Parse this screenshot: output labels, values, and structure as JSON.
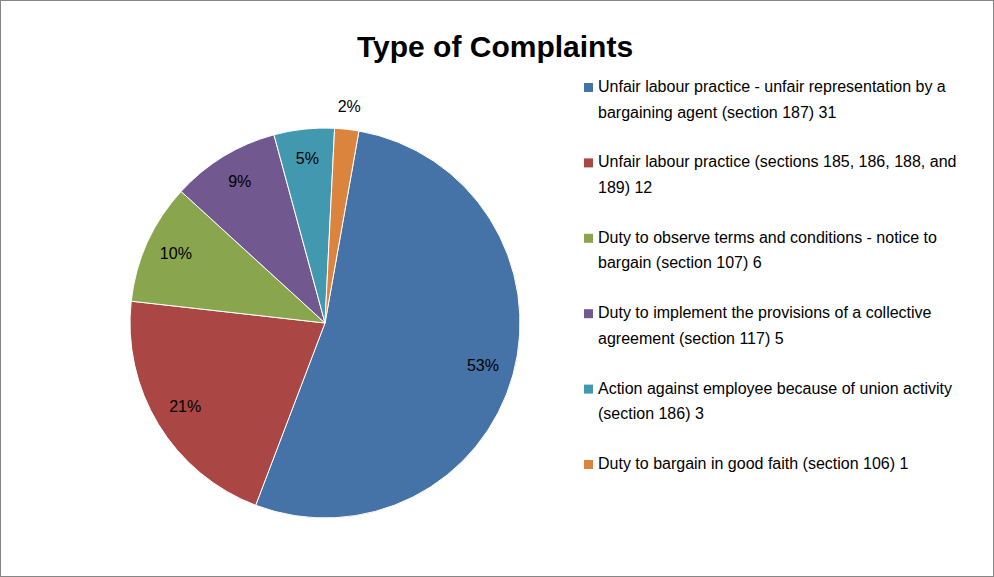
{
  "chart_data": {
    "type": "pie",
    "title": "Type of Complaints",
    "categories": [
      "Unfair labour practice - unfair representation by a bargaining agent (section 187) 31",
      "Unfair labour practice (sections 185, 186, 188, and 189) 12",
      "Duty to observe terms and conditions - notice to bargain (section 107) 6",
      "Duty to implement the provisions of a collective agreement (section 117) 5",
      "Action against employee because of union activity (section 186) 3",
      "Duty to bargain in good faith (section 106) 1"
    ],
    "values": [
      53,
      21,
      10,
      9,
      5,
      2
    ],
    "value_labels": [
      "53%",
      "21%",
      "10%",
      "9%",
      "5%",
      "2%"
    ],
    "colors": [
      "#4572a7",
      "#aa4643",
      "#89a54e",
      "#71588f",
      "#4198af",
      "#db843d"
    ],
    "data_labels": true,
    "legend": "right"
  }
}
